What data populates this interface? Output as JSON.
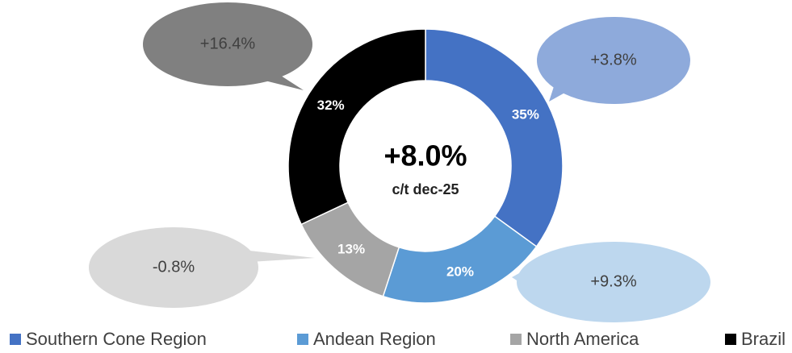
{
  "chart_data": {
    "type": "donut",
    "categories": [
      "Southern Cone Region",
      "Andean Region",
      "North America",
      "Brazil"
    ],
    "values": [
      35,
      20,
      13,
      32
    ],
    "value_labels": [
      "35%",
      "20%",
      "13%",
      "32%"
    ],
    "colors": [
      "#4472c4",
      "#5b9bd5",
      "#a5a5a5",
      "#000000"
    ],
    "center_title": "+8.0%",
    "center_subtitle": "c/t dec-25",
    "annotations": [
      "+3.8%",
      "+9.3%",
      "-0.8%",
      "+16.4%"
    ],
    "annotation_colors": [
      "#8eaadb",
      "#bdd7ee",
      "#d9d9d9",
      "#808080"
    ],
    "legend": "bottom"
  }
}
